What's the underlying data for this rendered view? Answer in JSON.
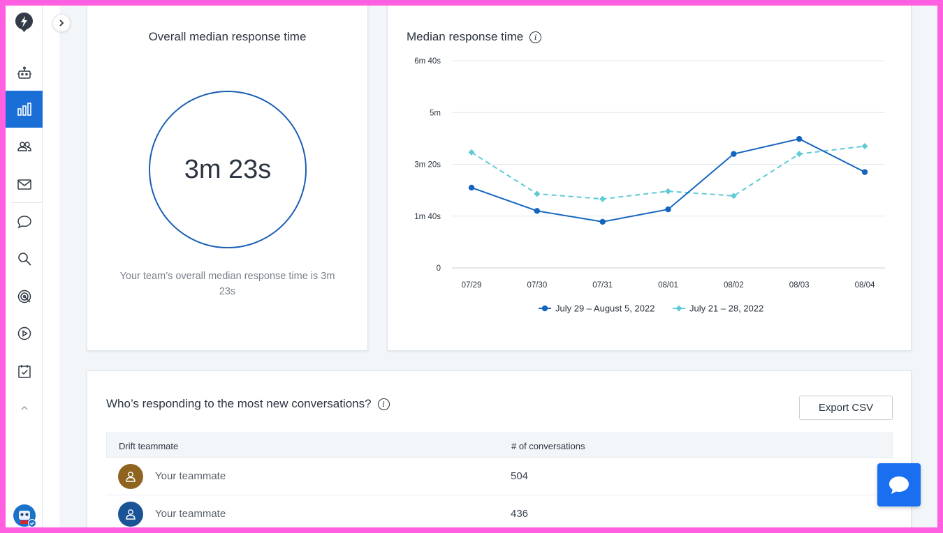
{
  "overall": {
    "title": "Overall median response time",
    "value": "3m 23s",
    "description": "Your team’s overall median response time is 3m 23s"
  },
  "median_chart": {
    "title": "Median response time"
  },
  "chart_data": {
    "type": "line",
    "categories": [
      "07/29",
      "07/30",
      "07/31",
      "08/01",
      "08/02",
      "08/03",
      "08/04"
    ],
    "y_ticks": [
      "6m 40s",
      "5m",
      "3m 20s",
      "1m 40s",
      "0"
    ],
    "ylim": [
      0,
      400
    ],
    "series": [
      {
        "name": "July 29 – August 5, 2022",
        "color": "#1565c0",
        "marker": "circle",
        "dashed": false,
        "values": [
          155,
          110,
          89,
          113,
          220,
          249,
          185
        ]
      },
      {
        "name": "July 21 – 28, 2022",
        "color": "#5fcbd4",
        "marker": "diamond",
        "dashed": true,
        "values": [
          223,
          143,
          133,
          148,
          139,
          220,
          235
        ]
      }
    ],
    "grid": true,
    "legend": "bottom"
  },
  "responders": {
    "title": "Who’s responding to the most new conversations?",
    "export_label": "Export CSV",
    "columns": [
      "Drift teammate",
      "# of conversations"
    ],
    "rows": [
      {
        "name": "Your teammate",
        "count": "504",
        "avatar_color": "#8f6421"
      },
      {
        "name": "Your teammate",
        "count": "436",
        "avatar_color": "#1a5496"
      }
    ]
  },
  "sidebar": {
    "items": [
      "bot-icon",
      "reports-icon",
      "contacts-icon",
      "email-icon",
      "chat-icon",
      "search-icon",
      "target-icon",
      "video-icon",
      "calendar-check-icon",
      "chevron-up-icon"
    ],
    "active": "reports-icon"
  }
}
